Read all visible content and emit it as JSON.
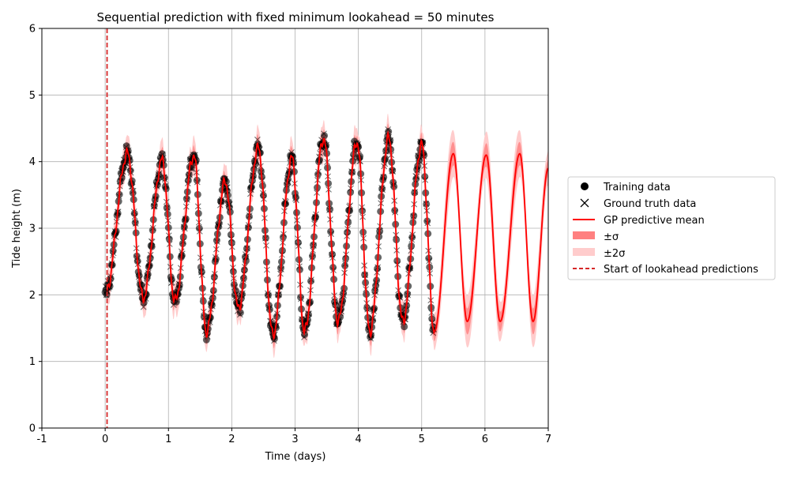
{
  "chart_data": {
    "type": "line",
    "title": "Sequential prediction with fixed minimum lookahead = 50 minutes",
    "xlabel": "Time (days)",
    "ylabel": "Tide height (m)",
    "xlim": [
      -1,
      7
    ],
    "ylim": [
      0,
      6
    ],
    "xticks": [
      "-1",
      "0",
      "1",
      "2",
      "3",
      "4",
      "5",
      "6",
      "7"
    ],
    "yticks": [
      "0",
      "1",
      "2",
      "3",
      "4",
      "5",
      "6"
    ],
    "grid": true,
    "legend_position": "right, outside plot",
    "lookahead_start_x": 0.03,
    "training_data_end_x": 5.2,
    "prediction_end_x": 7.0,
    "series": [
      {
        "name": "Training data",
        "marker": "circle",
        "color": "#000000",
        "values": "dense observations from ~0 to ~5.2 days, heights 1.4–4.4 m"
      },
      {
        "name": "Ground truth data",
        "marker": "x",
        "color": "#000000",
        "values": "dense observations from ~0 to ~5.2 days, heights 1.3–4.5 m"
      },
      {
        "name": "GP predictive mean",
        "marker": "line",
        "color": "#ff0000"
      },
      {
        "name": "±σ",
        "marker": "band",
        "color": "#ff8080"
      },
      {
        "name": "±2σ",
        "marker": "band",
        "color": "#ffcccc"
      },
      {
        "name": "Start of lookahead predictions",
        "marker": "dashed-line",
        "color": "#d62728"
      }
    ],
    "tide_extrema": [
      {
        "x": 0.0,
        "y": 2.0
      },
      {
        "x": 0.35,
        "y": 4.12
      },
      {
        "x": 0.6,
        "y": 1.95
      },
      {
        "x": 0.9,
        "y": 4.02
      },
      {
        "x": 1.1,
        "y": 1.9
      },
      {
        "x": 1.4,
        "y": 4.1
      },
      {
        "x": 1.6,
        "y": 1.45
      },
      {
        "x": 1.9,
        "y": 3.7
      },
      {
        "x": 2.1,
        "y": 1.8
      },
      {
        "x": 2.42,
        "y": 4.2
      },
      {
        "x": 2.65,
        "y": 1.4
      },
      {
        "x": 2.95,
        "y": 4.05
      },
      {
        "x": 3.15,
        "y": 1.45
      },
      {
        "x": 3.45,
        "y": 4.35
      },
      {
        "x": 3.68,
        "y": 1.6
      },
      {
        "x": 3.98,
        "y": 4.3
      },
      {
        "x": 4.18,
        "y": 1.45
      },
      {
        "x": 4.48,
        "y": 4.35
      },
      {
        "x": 4.7,
        "y": 1.6
      },
      {
        "x": 5.0,
        "y": 4.25
      },
      {
        "x": 5.2,
        "y": 1.45
      },
      {
        "x": 5.5,
        "y": 4.12
      },
      {
        "x": 5.72,
        "y": 1.6
      },
      {
        "x": 6.02,
        "y": 4.1
      },
      {
        "x": 6.24,
        "y": 1.6
      },
      {
        "x": 6.55,
        "y": 4.12
      },
      {
        "x": 6.76,
        "y": 1.6
      },
      {
        "x": 7.0,
        "y": 3.9
      }
    ]
  }
}
